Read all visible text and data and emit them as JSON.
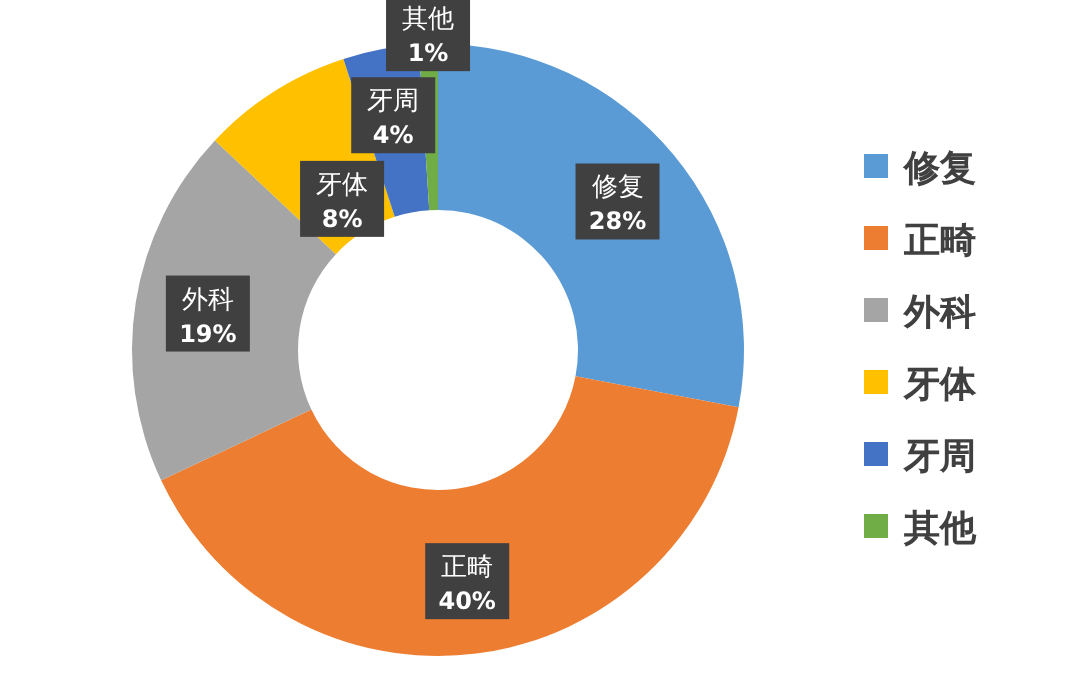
{
  "chart_data": {
    "type": "donut",
    "categories": [
      "修复",
      "正畸",
      "外科",
      "牙体",
      "牙周",
      "其他"
    ],
    "values": [
      28,
      40,
      19,
      8,
      4,
      1
    ],
    "value_labels": [
      "28%",
      "40%",
      "19%",
      "8%",
      "4%",
      "1%"
    ],
    "colors": [
      "#5b9bd5",
      "#ed7d31",
      "#a5a5a5",
      "#ffc000",
      "#4472c4",
      "#70ad47"
    ],
    "data_labels": true,
    "legend": "right"
  }
}
